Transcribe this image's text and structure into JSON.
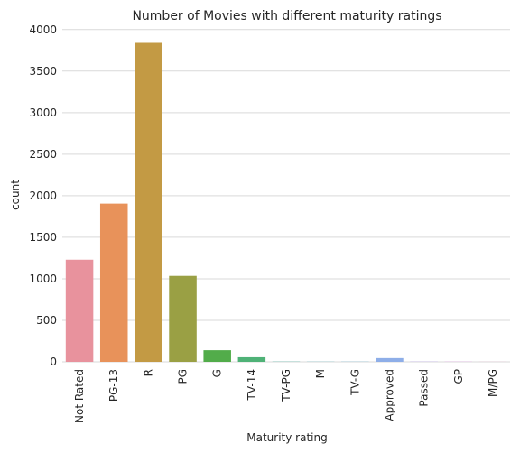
{
  "chart_data": {
    "type": "bar",
    "title": "Number of Movies with different maturity ratings",
    "xlabel": "Maturity rating",
    "ylabel": "count",
    "categories": [
      "Not Rated",
      "PG-13",
      "R",
      "PG",
      "G",
      "TV-14",
      "TV-PG",
      "M",
      "TV-G",
      "Approved",
      "Passed",
      "GP",
      "M/PG"
    ],
    "values": [
      1230,
      1905,
      3840,
      1035,
      140,
      55,
      3,
      2,
      2,
      45,
      3,
      2,
      1
    ],
    "colors": [
      "#e8929d",
      "#e8925a",
      "#c39a44",
      "#9aa044",
      "#52ac4a",
      "#4fb277",
      "#4fb0a0",
      "#4fa9b5",
      "#54a8c8",
      "#8eaee8",
      "#b8a4ea",
      "#dd8de3",
      "#e894c2"
    ],
    "yticks": [
      0,
      500,
      1000,
      1500,
      2000,
      2500,
      3000,
      3500,
      4000
    ],
    "ylim": [
      0,
      4030
    ],
    "grid": true,
    "legend": "none"
  }
}
